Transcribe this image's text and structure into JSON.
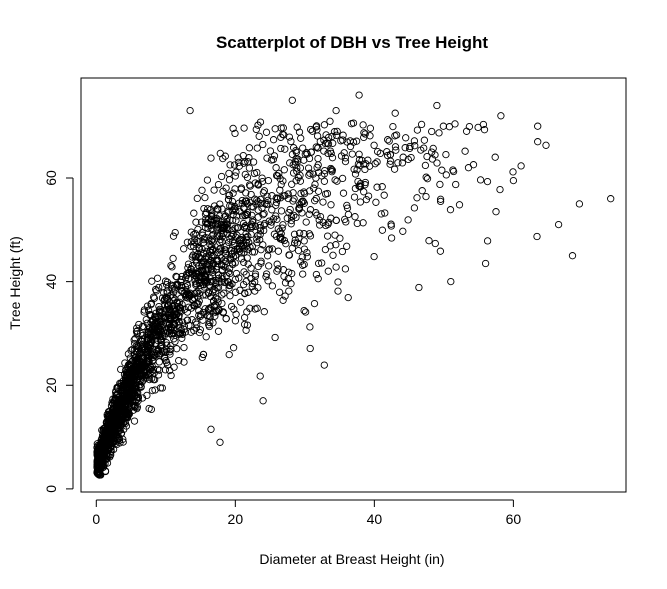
{
  "chart_data": {
    "type": "scatter",
    "title": "Scatterplot of DBH vs Tree Height",
    "xlabel": "Diameter at Breast Height (in)",
    "ylabel": "Tree Height (ft)",
    "xlim": [
      -2.2,
      76.2
    ],
    "ylim": [
      -0.6,
      79.3
    ],
    "xticks": [
      0,
      20,
      40,
      60
    ],
    "yticks": [
      0,
      20,
      40,
      60
    ],
    "grid": false,
    "legend": "none",
    "marker": "open-circle",
    "marker_color": "#000000",
    "point_count": 2300,
    "points_outlier_sample": [
      [
        13.5,
        73
      ],
      [
        28.2,
        75
      ],
      [
        37.8,
        76
      ],
      [
        49.0,
        74
      ],
      [
        58.2,
        72
      ],
      [
        43.0,
        72.5
      ],
      [
        34.5,
        73
      ],
      [
        63.5,
        70
      ],
      [
        74.0,
        56
      ],
      [
        68.5,
        45
      ],
      [
        69.5,
        55
      ],
      [
        60.0,
        59.5
      ],
      [
        57.5,
        53.5
      ],
      [
        56.0,
        43.5
      ],
      [
        51.0,
        40
      ],
      [
        66.5,
        51
      ],
      [
        63.5,
        67
      ],
      [
        17.8,
        9
      ],
      [
        16.5,
        11.5
      ],
      [
        24.0,
        17
      ]
    ]
  }
}
